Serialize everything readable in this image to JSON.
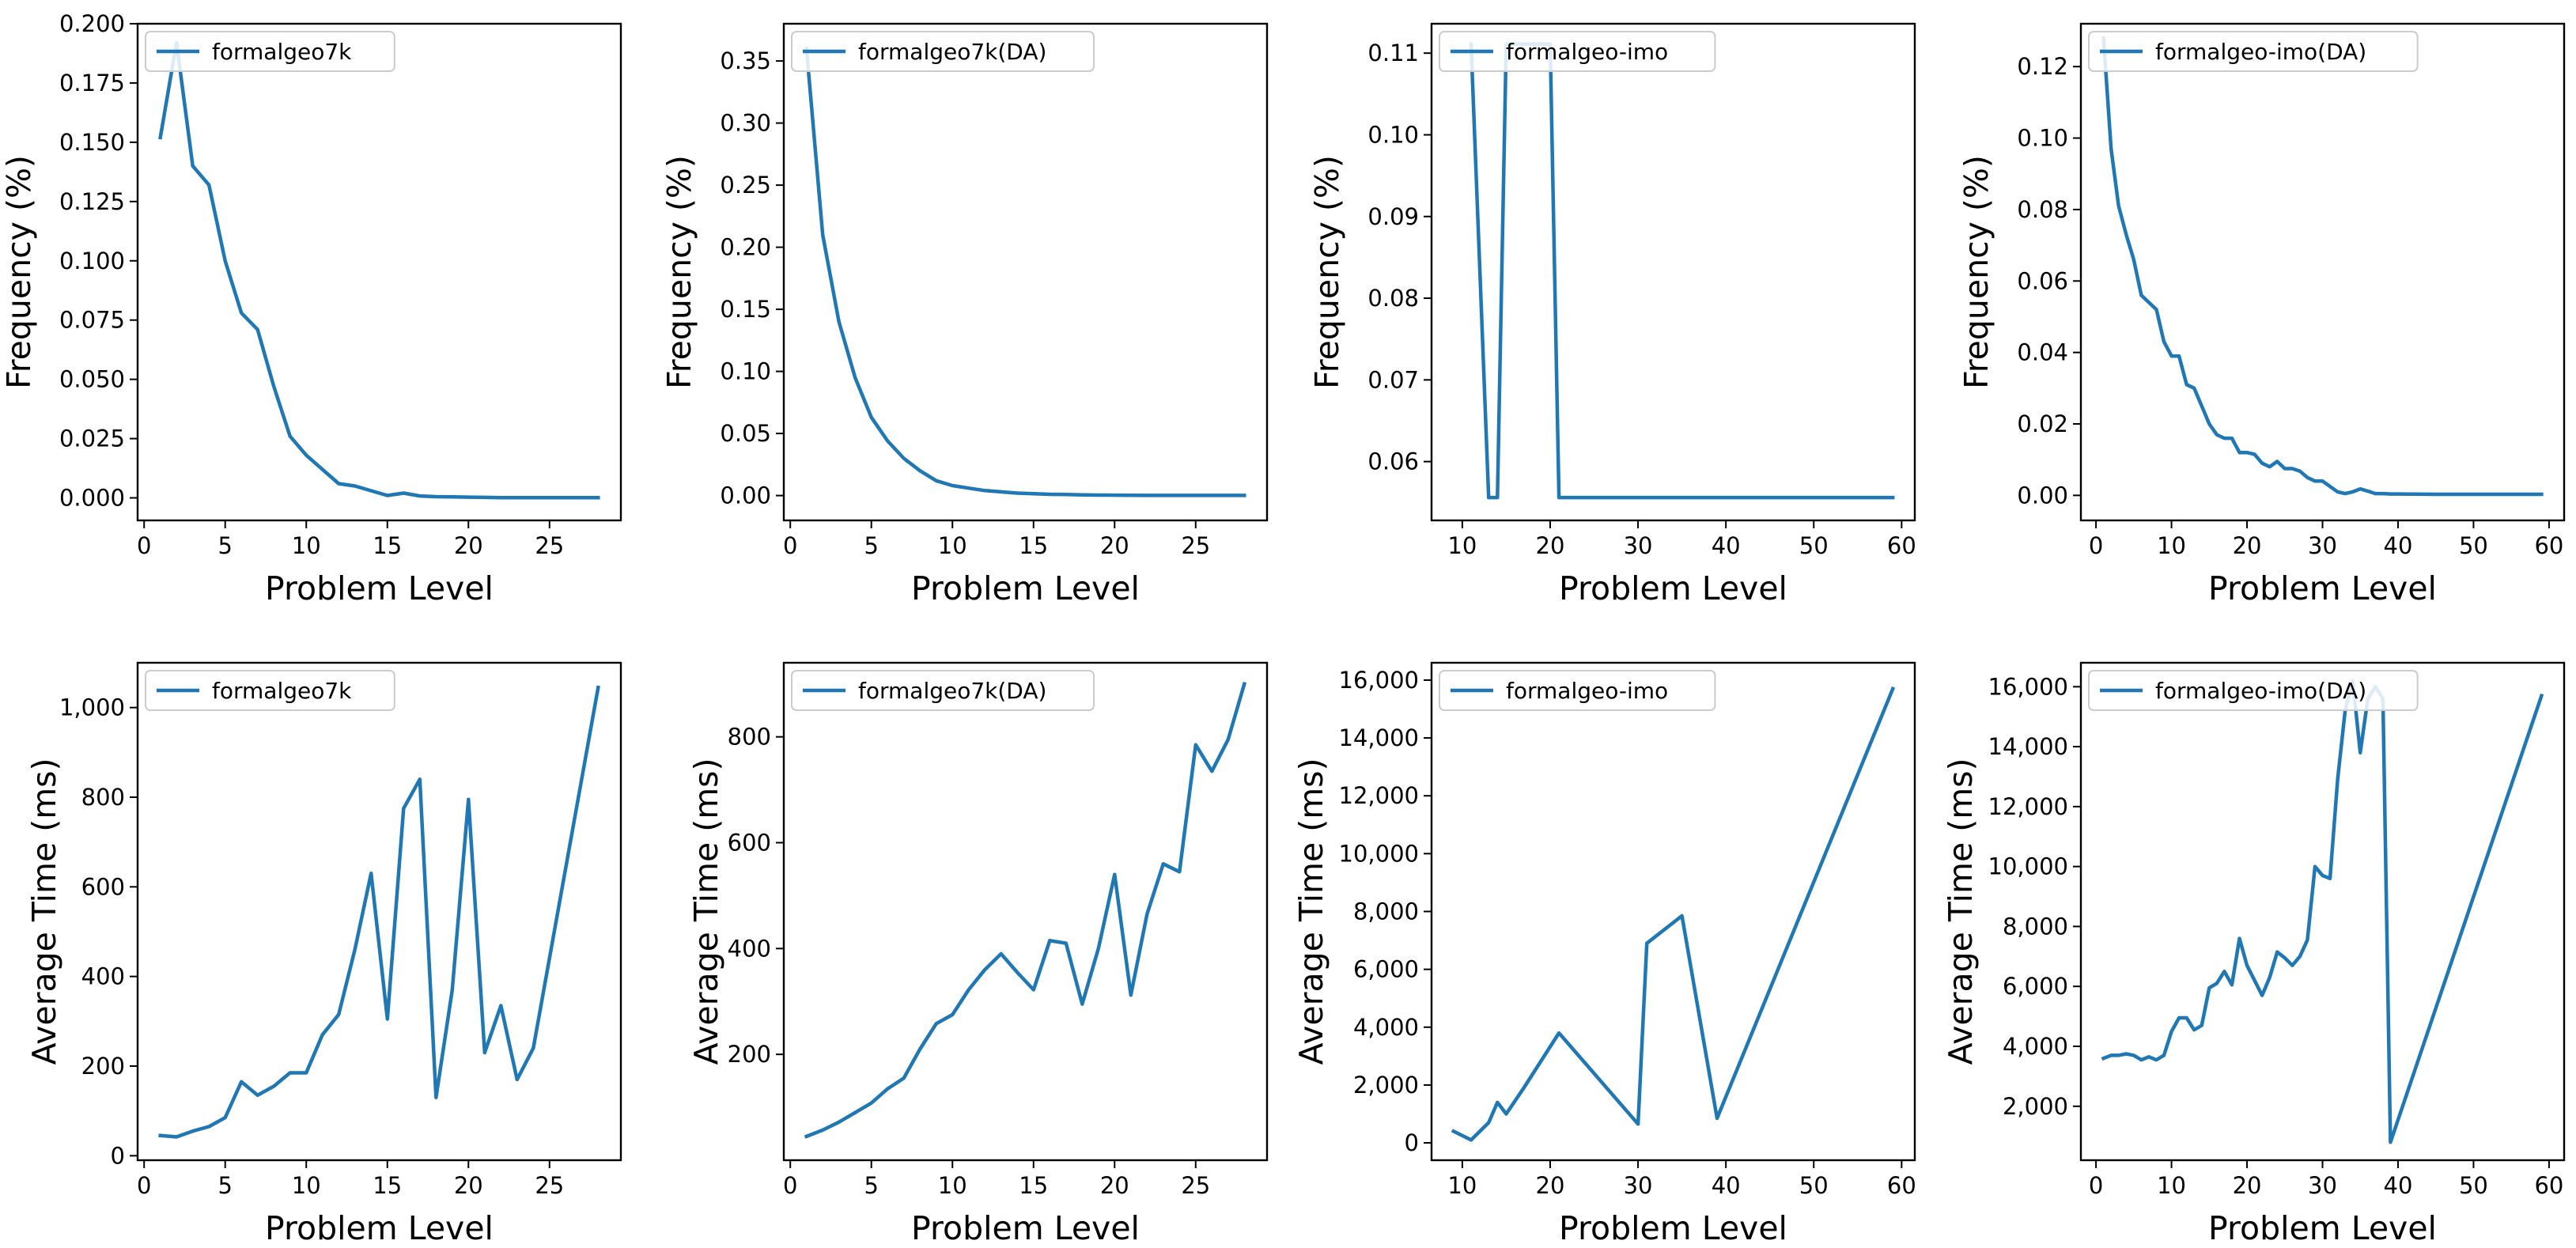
{
  "figure": {
    "line_color": "#1f77b4",
    "background": "#ffffff",
    "layout": "2 rows x 4 columns"
  },
  "chart_data": [
    {
      "type": "line",
      "xlabel": "Problem Level",
      "ylabel": "Frequency (%)",
      "legend": "upper left",
      "xlim": [
        -0.4,
        29.4
      ],
      "ylim": [
        -0.0095,
        0.2
      ],
      "xticks": [
        0,
        5,
        10,
        15,
        20,
        25
      ],
      "yticks": [
        0.0,
        0.025,
        0.05,
        0.075,
        0.1,
        0.125,
        0.15,
        0.175,
        0.2
      ],
      "ytick_labels": [
        "0.000",
        "0.025",
        "0.050",
        "0.075",
        "0.100",
        "0.125",
        "0.150",
        "0.175",
        "0.200"
      ],
      "series": [
        {
          "name": "formalgeo7k",
          "x": [
            1,
            2,
            3,
            4,
            5,
            6,
            7,
            8,
            9,
            10,
            11,
            12,
            13,
            14,
            15,
            16,
            17,
            18,
            19,
            20,
            21,
            22,
            23,
            24,
            25,
            26,
            27,
            28
          ],
          "y": [
            0.152,
            0.192,
            0.14,
            0.132,
            0.1,
            0.078,
            0.071,
            0.047,
            0.026,
            0.018,
            0.012,
            0.006,
            0.005,
            0.003,
            0.001,
            0.002,
            0.0008,
            0.0005,
            0.0004,
            0.0003,
            0.0002,
            0.0001,
            0.0001,
            0.0001,
            0.0001,
            0.0001,
            0.0001,
            0.0001
          ]
        }
      ]
    },
    {
      "type": "line",
      "xlabel": "Problem Level",
      "ylabel": "Frequency (%)",
      "legend": "upper left",
      "xlim": [
        -0.4,
        29.4
      ],
      "ylim": [
        -0.02,
        0.38
      ],
      "xticks": [
        0,
        5,
        10,
        15,
        20,
        25
      ],
      "yticks": [
        0.0,
        0.05,
        0.1,
        0.15,
        0.2,
        0.25,
        0.3,
        0.35
      ],
      "ytick_labels": [
        "0.00",
        "0.05",
        "0.10",
        "0.15",
        "0.20",
        "0.25",
        "0.30",
        "0.35"
      ],
      "series": [
        {
          "name": "formalgeo7k(DA)",
          "x": [
            1,
            2,
            3,
            4,
            5,
            6,
            7,
            8,
            9,
            10,
            11,
            12,
            13,
            14,
            15,
            16,
            17,
            18,
            19,
            20,
            21,
            22,
            23,
            24,
            25,
            26,
            27,
            28
          ],
          "y": [
            0.36,
            0.21,
            0.14,
            0.095,
            0.063,
            0.044,
            0.03,
            0.02,
            0.012,
            0.008,
            0.006,
            0.004,
            0.003,
            0.002,
            0.0015,
            0.001,
            0.0008,
            0.0006,
            0.0004,
            0.0003,
            0.0002,
            0.0001,
            0.0001,
            0.0001,
            0.0001,
            0.0001,
            0.0001,
            0.0001
          ]
        }
      ]
    },
    {
      "type": "line",
      "xlabel": "Problem Level",
      "ylabel": "Frequency (%)",
      "legend": "upper left",
      "xlim": [
        6.5,
        61.5
      ],
      "ylim": [
        0.0528,
        0.1136
      ],
      "xticks": [
        10,
        20,
        30,
        40,
        50,
        60
      ],
      "yticks": [
        0.06,
        0.07,
        0.08,
        0.09,
        0.1,
        0.11
      ],
      "ytick_labels": [
        "0.06",
        "0.07",
        "0.08",
        "0.09",
        "0.10",
        "0.11"
      ],
      "series": [
        {
          "name": "formalgeo-imo",
          "x": [
            11,
            13,
            14,
            15,
            20,
            21,
            59
          ],
          "y": [
            0.1111,
            0.0556,
            0.0556,
            0.1111,
            0.1111,
            0.0556,
            0.0556
          ]
        }
      ]
    },
    {
      "type": "line",
      "xlabel": "Problem Level",
      "ylabel": "Frequency (%)",
      "legend": "upper left",
      "xlim": [
        -2,
        62
      ],
      "ylim": [
        -0.007,
        0.132
      ],
      "xticks": [
        0,
        10,
        20,
        30,
        40,
        50,
        60
      ],
      "yticks": [
        0.0,
        0.02,
        0.04,
        0.06,
        0.08,
        0.1,
        0.12
      ],
      "ytick_labels": [
        "0.00",
        "0.02",
        "0.04",
        "0.06",
        "0.08",
        "0.10",
        "0.12"
      ],
      "series": [
        {
          "name": "formalgeo-imo(DA)",
          "x": [
            1,
            2,
            3,
            4,
            5,
            6,
            7,
            8,
            9,
            10,
            11,
            12,
            13,
            14,
            15,
            16,
            17,
            18,
            19,
            20,
            21,
            22,
            23,
            24,
            25,
            26,
            27,
            28,
            29,
            30,
            31,
            32,
            33,
            34,
            35,
            36,
            37,
            38,
            39,
            40,
            45,
            50,
            55,
            59
          ],
          "y": [
            0.128,
            0.097,
            0.081,
            0.073,
            0.066,
            0.056,
            0.054,
            0.052,
            0.043,
            0.039,
            0.039,
            0.031,
            0.03,
            0.025,
            0.02,
            0.017,
            0.016,
            0.016,
            0.012,
            0.012,
            0.0115,
            0.009,
            0.008,
            0.0095,
            0.0075,
            0.0075,
            0.0068,
            0.005,
            0.004,
            0.004,
            0.0025,
            0.001,
            0.0005,
            0.001,
            0.0018,
            0.0012,
            0.0005,
            0.0005,
            0.0004,
            0.0004,
            0.0003,
            0.0003,
            0.0003,
            0.0003
          ]
        }
      ]
    },
    {
      "type": "line",
      "xlabel": "Problem Level",
      "ylabel": "Average Time (ms)",
      "legend": "upper left",
      "xlim": [
        -0.4,
        29.4
      ],
      "ylim": [
        -10,
        1100
      ],
      "xticks": [
        0,
        5,
        10,
        15,
        20,
        25
      ],
      "yticks": [
        0,
        200,
        400,
        600,
        800,
        1000
      ],
      "ytick_labels": [
        "0",
        "200",
        "400",
        "600",
        "800",
        "1,000"
      ],
      "series": [
        {
          "name": "formalgeo7k",
          "x": [
            1,
            2,
            3,
            4,
            5,
            6,
            7,
            8,
            9,
            10,
            11,
            12,
            13,
            14,
            15,
            16,
            17,
            18,
            19,
            20,
            21,
            22,
            23,
            24,
            28
          ],
          "y": [
            45,
            42,
            55,
            65,
            85,
            165,
            135,
            155,
            185,
            185,
            270,
            315,
            460,
            630,
            305,
            775,
            840,
            130,
            370,
            795,
            230,
            335,
            170,
            240,
            1045
          ]
        }
      ]
    },
    {
      "type": "line",
      "xlabel": "Problem Level",
      "ylabel": "Average Time (ms)",
      "legend": "upper left",
      "xlim": [
        -0.4,
        29.4
      ],
      "ylim": [
        0,
        940
      ],
      "xticks": [
        0,
        5,
        10,
        15,
        20,
        25
      ],
      "yticks": [
        200,
        400,
        600,
        800
      ],
      "ytick_labels": [
        "200",
        "400",
        "600",
        "800"
      ],
      "series": [
        {
          "name": "formalgeo7k(DA)",
          "x": [
            1,
            2,
            3,
            4,
            5,
            6,
            7,
            8,
            9,
            10,
            11,
            12,
            13,
            14,
            15,
            16,
            17,
            18,
            19,
            20,
            21,
            22,
            23,
            24,
            25,
            26,
            27,
            28
          ],
          "y": [
            45,
            57,
            72,
            90,
            108,
            135,
            155,
            210,
            258,
            275,
            322,
            360,
            390,
            355,
            322,
            415,
            410,
            295,
            400,
            540,
            312,
            465,
            560,
            545,
            785,
            735,
            795,
            900
          ]
        }
      ]
    },
    {
      "type": "line",
      "xlabel": "Problem Level",
      "ylabel": "Average Time (ms)",
      "legend": "upper left",
      "xlim": [
        6.5,
        61.5
      ],
      "ylim": [
        -600,
        16600
      ],
      "xticks": [
        10,
        20,
        30,
        40,
        50,
        60
      ],
      "yticks": [
        0,
        2000,
        4000,
        6000,
        8000,
        10000,
        12000,
        14000,
        16000
      ],
      "ytick_labels": [
        "0",
        "2,000",
        "4,000",
        "6,000",
        "8,000",
        "10,000",
        "12,000",
        "14,000",
        "16,000"
      ],
      "series": [
        {
          "name": "formalgeo-imo",
          "x": [
            9,
            11,
            13,
            14,
            15,
            17,
            21,
            30,
            31,
            35,
            39,
            59
          ],
          "y": [
            400,
            100,
            700,
            1400,
            1000,
            1900,
            3800,
            650,
            6900,
            7850,
            850,
            15700
          ]
        }
      ]
    },
    {
      "type": "line",
      "xlabel": "Problem Level",
      "ylabel": "Average Time (ms)",
      "legend": "upper left",
      "xlim": [
        -2,
        62
      ],
      "ylim": [
        200,
        16800
      ],
      "xticks": [
        0,
        10,
        20,
        30,
        40,
        50,
        60
      ],
      "yticks": [
        2000,
        4000,
        6000,
        8000,
        10000,
        12000,
        14000,
        16000
      ],
      "ytick_labels": [
        "2,000",
        "4,000",
        "6,000",
        "8,000",
        "10,000",
        "12,000",
        "14,000",
        "16,000"
      ],
      "series": [
        {
          "name": "formalgeo-imo(DA)",
          "x": [
            1,
            2,
            3,
            4,
            5,
            6,
            7,
            8,
            9,
            10,
            11,
            12,
            13,
            14,
            15,
            16,
            17,
            18,
            19,
            20,
            21,
            22,
            23,
            24,
            25,
            26,
            27,
            28,
            29,
            30,
            31,
            32,
            33,
            34,
            35,
            36,
            37,
            38,
            39,
            59
          ],
          "y": [
            3600,
            3700,
            3700,
            3750,
            3700,
            3550,
            3650,
            3550,
            3700,
            4500,
            4950,
            4950,
            4550,
            4700,
            5950,
            6100,
            6500,
            6050,
            7600,
            6700,
            6200,
            5700,
            6300,
            7150,
            6950,
            6700,
            7000,
            7550,
            10000,
            9700,
            9600,
            12900,
            15200,
            16200,
            13800,
            15600,
            16000,
            15600,
            800,
            15700
          ]
        }
      ]
    }
  ]
}
